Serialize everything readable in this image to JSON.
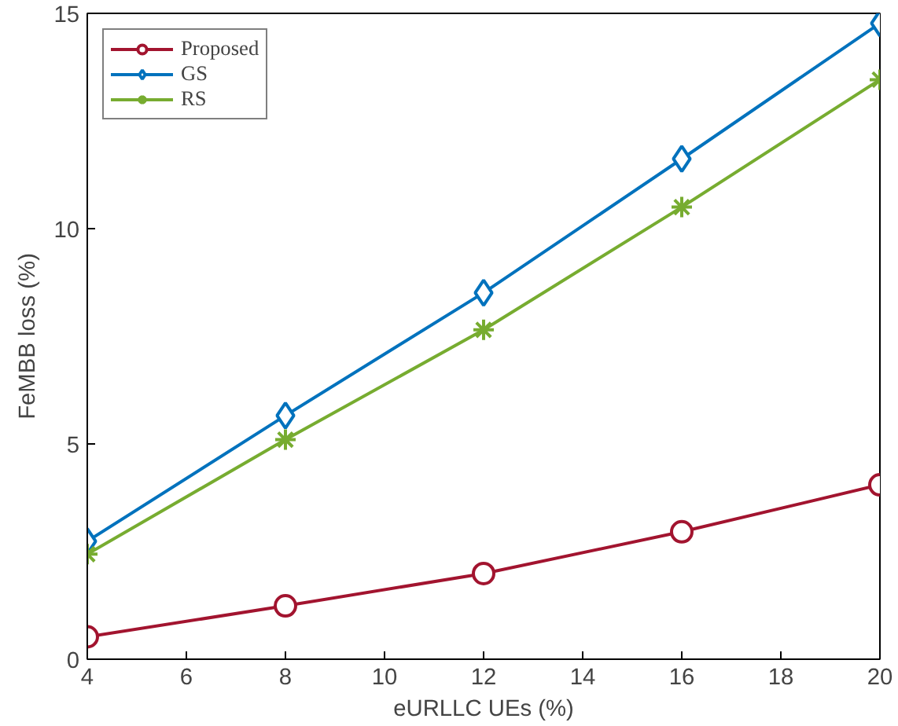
{
  "chart_data": {
    "type": "line",
    "xlabel": "eURLLC UEs (%)",
    "ylabel": "FeMBB loss (%)",
    "x": [
      4,
      8,
      12,
      16,
      20
    ],
    "series": [
      {
        "name": "Proposed",
        "color": "#a2142f",
        "marker": "circle",
        "values": [
          0.52,
          1.24,
          1.99,
          2.96,
          4.05
        ]
      },
      {
        "name": "GS",
        "color": "#0072bd",
        "marker": "diamond",
        "values": [
          2.74,
          5.66,
          8.51,
          11.62,
          14.77
        ]
      },
      {
        "name": "RS",
        "color": "#77ac30",
        "marker": "cross",
        "values": [
          2.44,
          5.1,
          7.65,
          10.5,
          13.46
        ]
      }
    ],
    "xlim": [
      4,
      20
    ],
    "xticks": [
      4,
      6,
      8,
      10,
      12,
      14,
      16,
      18,
      20
    ],
    "ylim": [
      0,
      15
    ],
    "yticks": [
      0,
      5,
      10,
      15
    ],
    "grid": false,
    "legend": "top left",
    "line_style": "solid"
  }
}
